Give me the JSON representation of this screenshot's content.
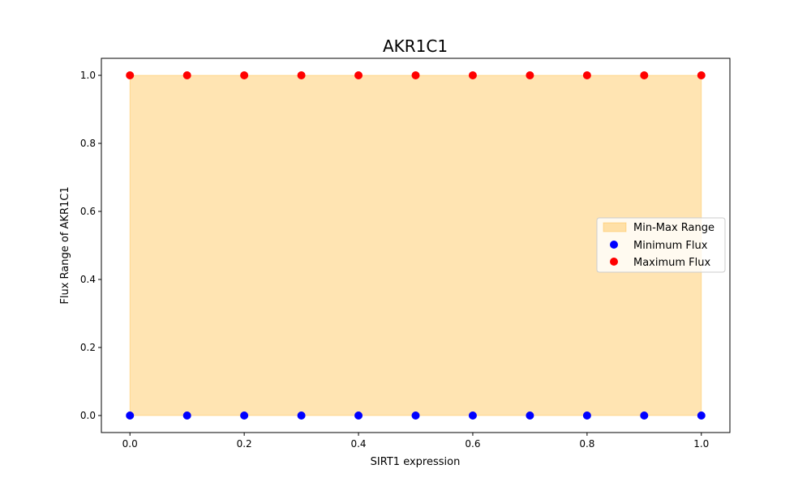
{
  "chart_data": {
    "type": "scatter",
    "title": "AKR1C1",
    "xlabel": "SIRT1 expression",
    "ylabel": "Flux Range of AKR1C1",
    "xlim": [
      -0.05,
      1.05
    ],
    "ylim": [
      -0.05,
      1.05
    ],
    "xticks": [
      "0.0",
      "0.2",
      "0.4",
      "0.6",
      "0.8",
      "1.0"
    ],
    "yticks": [
      "0.0",
      "0.2",
      "0.4",
      "0.6",
      "0.8",
      "1.0"
    ],
    "x": [
      0.0,
      0.1,
      0.2,
      0.3,
      0.4,
      0.5,
      0.6,
      0.7,
      0.8,
      0.9,
      1.0
    ],
    "series": [
      {
        "name": "Min-Max Range",
        "kind": "fill_between",
        "lower": [
          0,
          0,
          0,
          0,
          0,
          0,
          0,
          0,
          0,
          0,
          0
        ],
        "upper": [
          1,
          1,
          1,
          1,
          1,
          1,
          1,
          1,
          1,
          1,
          1
        ],
        "color": "#ffa500",
        "opacity": 0.3
      },
      {
        "name": "Minimum Flux",
        "kind": "scatter",
        "values": [
          0,
          0,
          0,
          0,
          0,
          0,
          0,
          0,
          0,
          0,
          0
        ],
        "color": "#0000ff"
      },
      {
        "name": "Maximum Flux",
        "kind": "scatter",
        "values": [
          1,
          1,
          1,
          1,
          1,
          1,
          1,
          1,
          1,
          1,
          1
        ],
        "color": "#ff0000"
      }
    ],
    "grid": false,
    "legend_position": "center-right"
  }
}
